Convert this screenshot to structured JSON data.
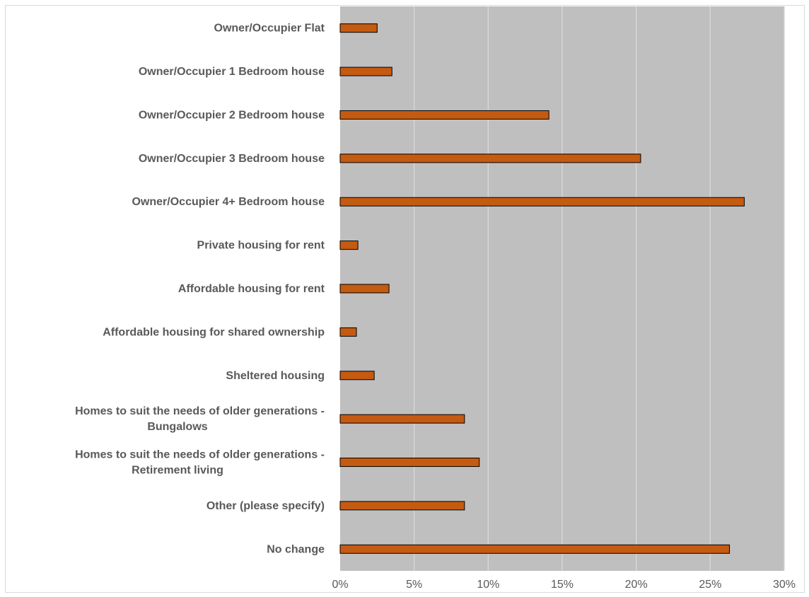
{
  "chart_data": {
    "type": "bar",
    "orientation": "horizontal",
    "categories": [
      [
        "Owner/Occupier Flat"
      ],
      [
        "Owner/Occupier  1 Bedroom house"
      ],
      [
        "Owner/Occupier  2 Bedroom house"
      ],
      [
        "Owner/Occupier  3 Bedroom house"
      ],
      [
        "Owner/Occupier 4+ Bedroom house"
      ],
      [
        "Private housing for rent"
      ],
      [
        "Affordable housing for rent"
      ],
      [
        "Affordable housing for shared ownership"
      ],
      [
        "Sheltered housing"
      ],
      [
        "Homes to suit the needs of older generations -",
        "Bungalows"
      ],
      [
        "Homes to suit the needs of older generations -",
        "Retirement living"
      ],
      [
        "Other (please specify)"
      ],
      [
        "No change"
      ]
    ],
    "values": [
      2.5,
      3.5,
      14.1,
      20.3,
      27.3,
      1.2,
      3.3,
      1.1,
      2.3,
      8.4,
      9.4,
      8.4,
      26.3
    ],
    "xlim": [
      0,
      30
    ],
    "xticks": [
      "0%",
      "5%",
      "10%",
      "15%",
      "20%",
      "25%",
      "30%"
    ],
    "xtick_values": [
      0,
      5,
      10,
      15,
      20,
      25,
      30
    ],
    "title": "",
    "xlabel": "",
    "ylabel": "",
    "grid": "vertical",
    "legend": "none",
    "colors": {
      "bar_fill": "#c55a11",
      "bar_stroke": "#000000",
      "plot_background": "#bfbfbf",
      "gridline": "#d9d9d9",
      "text": "#595959"
    }
  }
}
